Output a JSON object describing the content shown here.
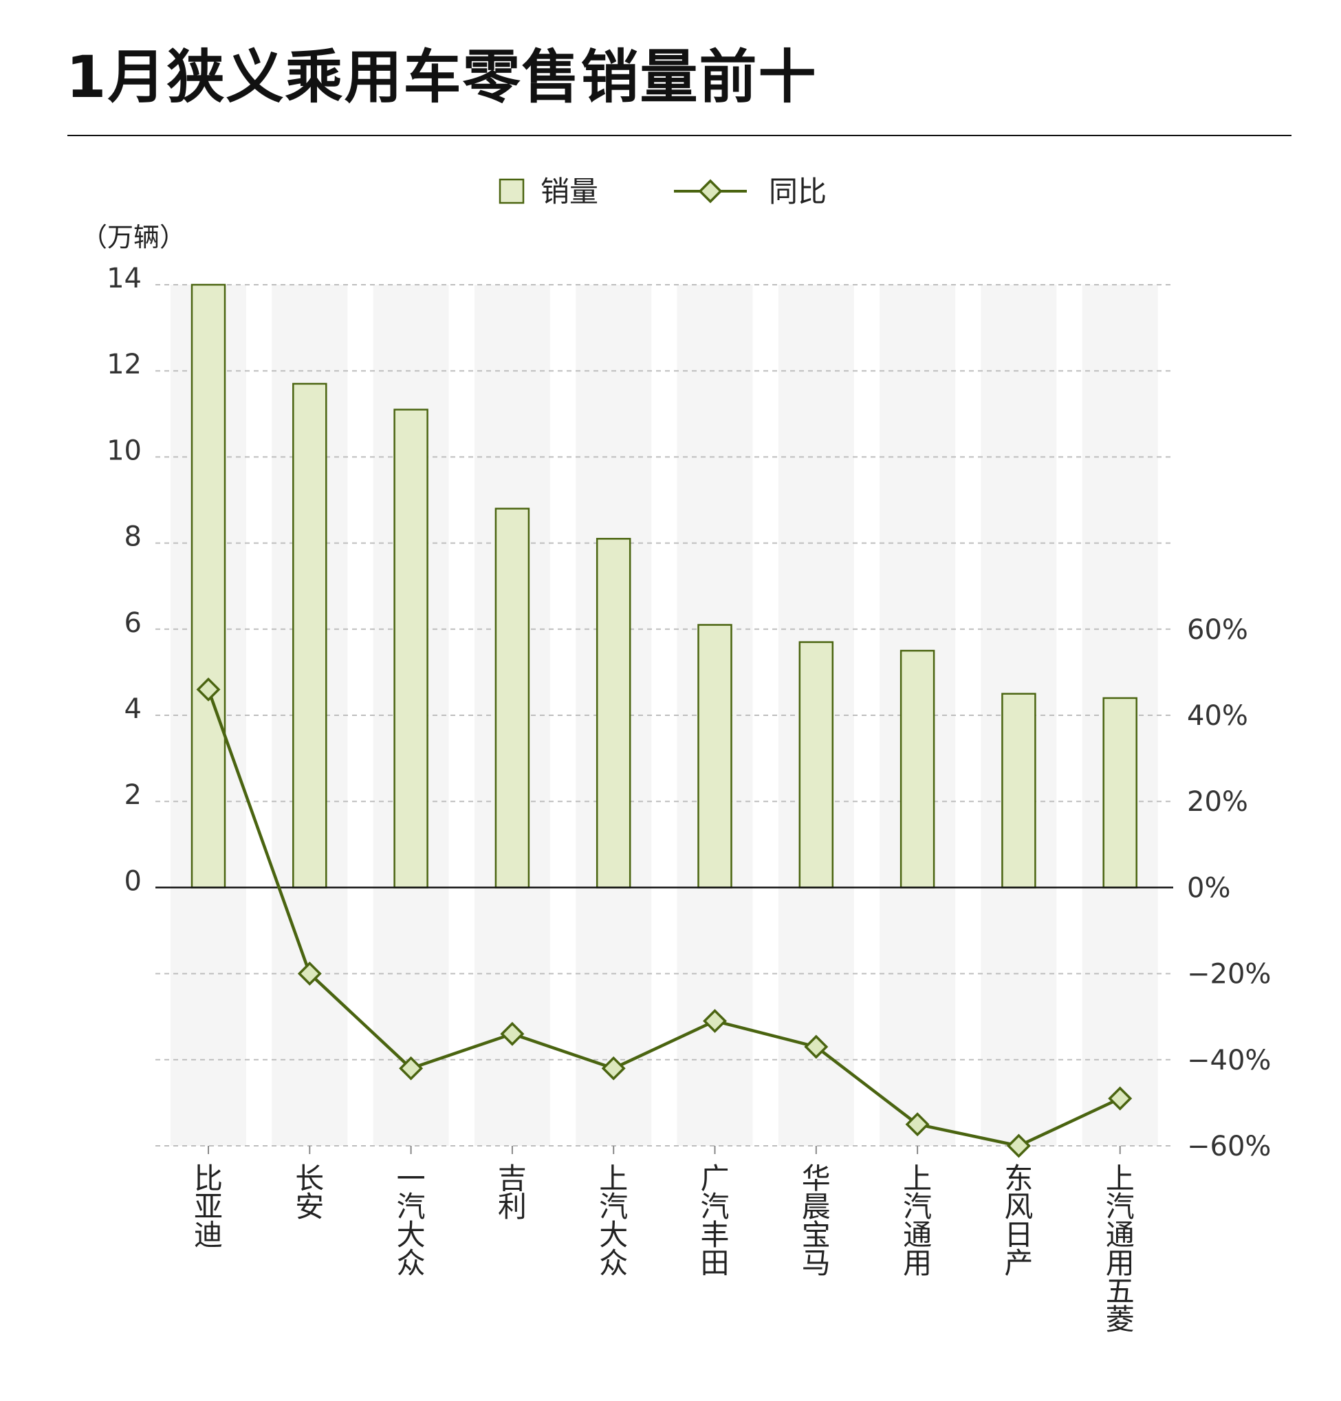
{
  "title": "1月狭义乘用车零售销量前十",
  "colors": {
    "bar_fill": "#e4ecca",
    "bar_stroke": "#4a6410",
    "line": "#4a6410",
    "marker_fill": "#dce8bd",
    "grid": "#bdbdbd",
    "band": "#f5f5f5"
  },
  "legend": {
    "placement": "top-center",
    "bar_label": "销量",
    "line_label": "同比"
  },
  "chart_data": {
    "type": "bar+line",
    "title": "1月狭义乘用车零售销量前十",
    "categories": [
      "比亚迪",
      "长安",
      "一汽大众",
      "吉利",
      "上汽大众",
      "广汽丰田",
      "华晨宝马",
      "上汽通用",
      "东风日产",
      "上汽通用五菱"
    ],
    "series": [
      {
        "name": "销量",
        "type": "bar",
        "axis": "left",
        "values": [
          14.0,
          11.7,
          11.1,
          8.8,
          8.1,
          6.1,
          5.7,
          5.5,
          4.5,
          4.4
        ]
      },
      {
        "name": "同比",
        "type": "line",
        "axis": "right",
        "values": [
          46,
          -20,
          -42,
          -34,
          -42,
          -31,
          -37,
          -55,
          -60,
          -49
        ]
      }
    ],
    "left_axis": {
      "unit_label": "（万辆）",
      "ticks": [
        "14",
        "12",
        "10",
        "8",
        "6",
        "4",
        "2",
        "0"
      ],
      "tick_values": [
        14,
        12,
        10,
        8,
        6,
        4,
        2,
        0
      ],
      "range": [
        -6,
        14
      ]
    },
    "right_axis": {
      "ticks": [
        "60%",
        "40%",
        "20%",
        "0%",
        "−20%",
        "−40%",
        "−60%"
      ],
      "tick_values": [
        60,
        40,
        20,
        0,
        -20,
        -40,
        -60
      ],
      "range": [
        -60,
        140
      ]
    },
    "grid": true
  }
}
